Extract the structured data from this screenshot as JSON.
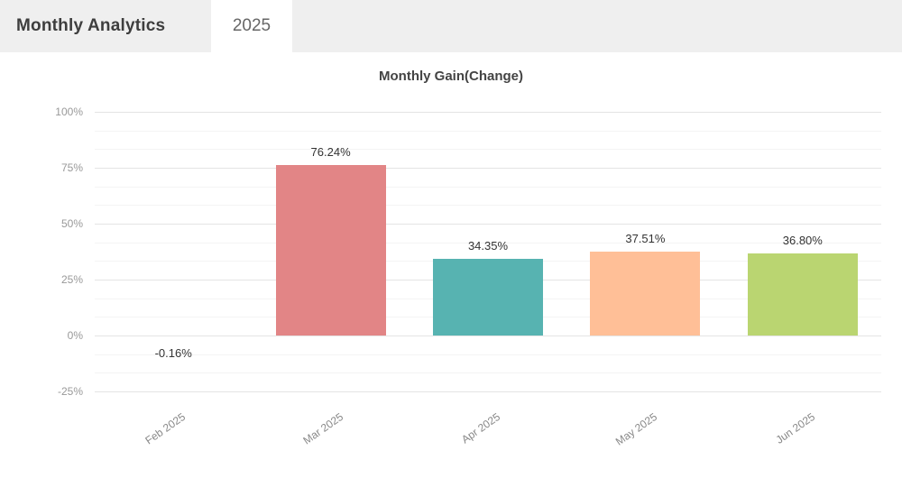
{
  "header": {
    "title": "Monthly Analytics",
    "tab": "2025"
  },
  "chart_data": {
    "type": "bar",
    "title": "Monthly Gain(Change)",
    "categories": [
      "Feb 2025",
      "Mar 2025",
      "Apr 2025",
      "May 2025",
      "Jun 2025"
    ],
    "values": [
      -0.16,
      76.24,
      34.35,
      37.51,
      36.8
    ],
    "value_labels": [
      "-0.16%",
      "76.24%",
      "34.35%",
      "37.51%",
      "36.80%"
    ],
    "bar_colors": [
      null,
      "#e28586",
      "#57b3b1",
      "#ffbf97",
      "#bad571"
    ],
    "ylim": [
      -25,
      100
    ],
    "yticks": [
      100,
      75,
      50,
      25,
      0,
      -25
    ],
    "ytick_labels": [
      "100%",
      "75%",
      "50%",
      "25%",
      "0%",
      "-25%"
    ],
    "xlabel": "",
    "ylabel": "",
    "grid": "on",
    "legend": "none"
  }
}
